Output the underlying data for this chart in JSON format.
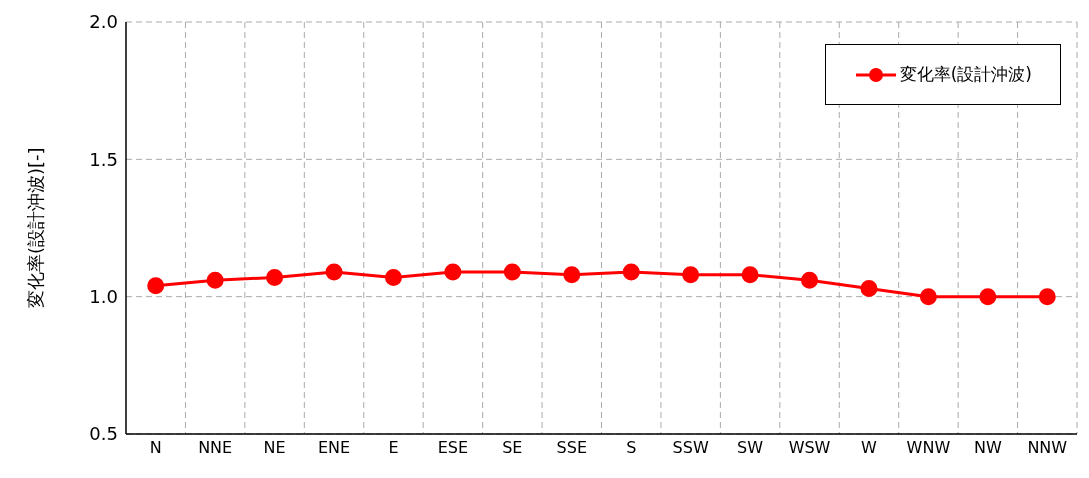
{
  "chart_data": {
    "type": "line",
    "ylabel": "変化率(設計沖波)[-]",
    "categories": [
      "N",
      "NNE",
      "NE",
      "ENE",
      "E",
      "ESE",
      "SE",
      "SSE",
      "S",
      "SSW",
      "SW",
      "WSW",
      "W",
      "WNW",
      "NW",
      "NNW"
    ],
    "series": [
      {
        "name": "変化率(設計沖波)",
        "color": "#ff0000",
        "values": [
          1.04,
          1.06,
          1.07,
          1.09,
          1.07,
          1.09,
          1.09,
          1.08,
          1.09,
          1.08,
          1.08,
          1.06,
          1.03,
          1.0,
          1.0,
          1.0
        ]
      }
    ],
    "ylim": [
      0.5,
      2.0
    ],
    "yticks": [
      {
        "value": 0.5,
        "label": "0.5"
      },
      {
        "value": 1.0,
        "label": "1.0"
      },
      {
        "value": 1.5,
        "label": "1.5"
      },
      {
        "value": 2.0,
        "label": "2.0"
      }
    ],
    "grid": true,
    "legend": "top right",
    "marker": "circle",
    "line_style": "solid"
  }
}
